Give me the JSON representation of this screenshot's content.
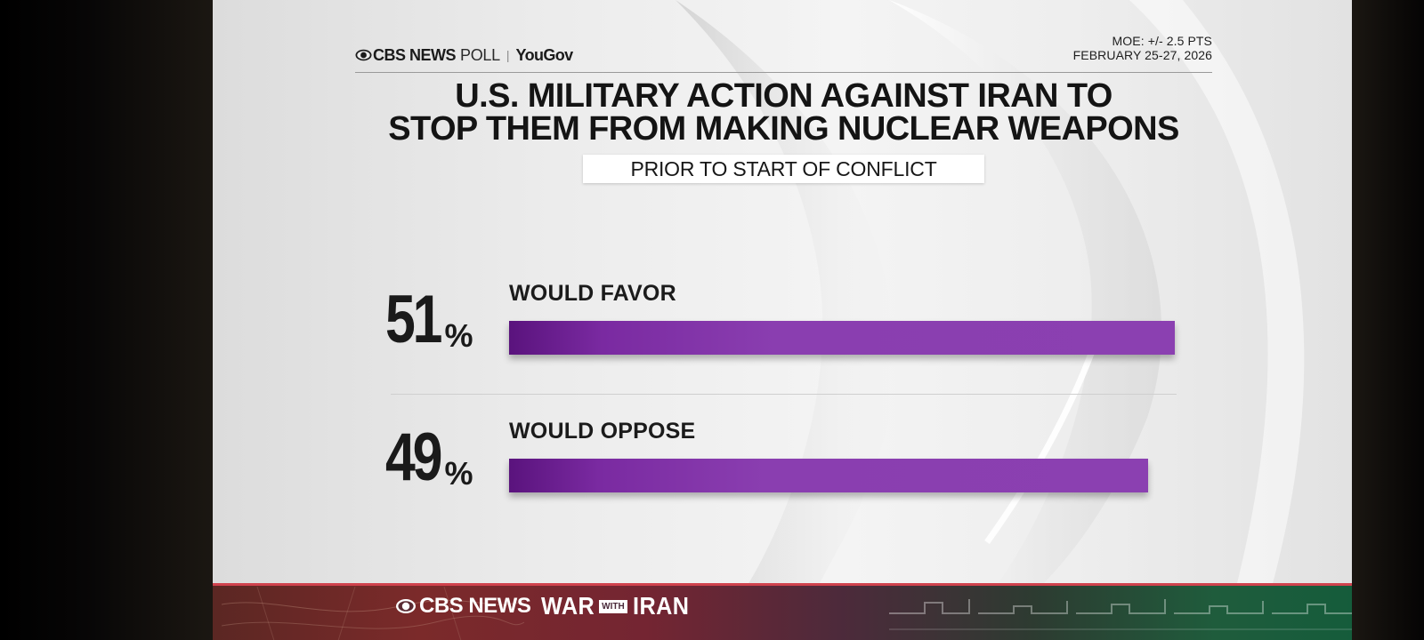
{
  "header": {
    "brand_cbs": "CBS NEWS",
    "brand_poll": "POLL",
    "brand_sep": "|",
    "brand_yougov": "YouGov",
    "moe": "MOE: +/- 2.5 PTS",
    "dates": "FEBRUARY 25-27, 2026"
  },
  "chart_data": {
    "type": "bar",
    "orientation": "horizontal",
    "title_line1": "U.S. MILITARY ACTION AGAINST IRAN TO",
    "title_line2": "STOP THEM FROM MAKING NUCLEAR WEAPONS",
    "subtitle": "PRIOR TO START OF CONFLICT",
    "categories": [
      "WOULD FAVOR",
      "WOULD OPPOSE"
    ],
    "values": [
      51,
      49
    ],
    "value_labels": [
      "51",
      "49"
    ],
    "unit_symbol": "%",
    "xlim": [
      0,
      100
    ],
    "bar_color": "#8a3eb0",
    "grid": false,
    "legend": "none"
  },
  "ticker": {
    "brand_cbs": "CBS NEWS",
    "war": "WAR",
    "with": "WITH",
    "iran": "IRAN"
  },
  "colors": {
    "bar_purple": "#8a3eb0",
    "bar_purple_dark": "#5a137d",
    "ticker_red": "#d0424d",
    "ticker_green": "#155c3b"
  }
}
